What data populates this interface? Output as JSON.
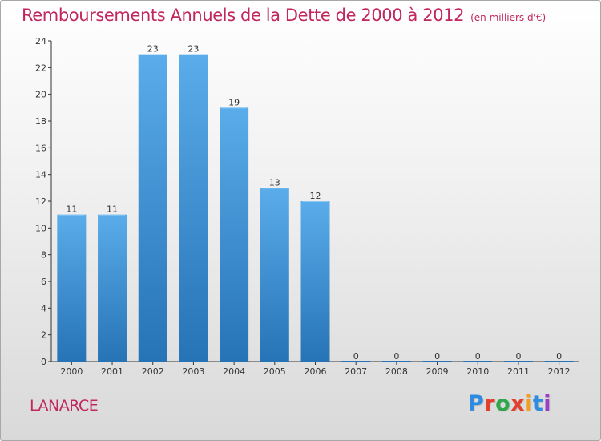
{
  "chart_data": {
    "type": "bar",
    "title": "Remboursements Annuels de la Dette de 2000 à 2012",
    "subtitle": "(en milliers d'€)",
    "categories": [
      "2000",
      "2001",
      "2002",
      "2003",
      "2004",
      "2005",
      "2006",
      "2007",
      "2008",
      "2009",
      "2010",
      "2011",
      "2012"
    ],
    "values": [
      11,
      11,
      23,
      23,
      19,
      13,
      12,
      0,
      0,
      0,
      0,
      0,
      0
    ],
    "ylim": [
      0,
      24
    ],
    "yticks": [
      0,
      2,
      4,
      6,
      8,
      10,
      12,
      14,
      16,
      18,
      20,
      22,
      24
    ],
    "grid": false,
    "legend": "none",
    "xlabel": "",
    "ylabel": "",
    "colors": {
      "bar_top": "#5aacea",
      "bar_bottom": "#2673b6",
      "title": "#c2265e",
      "axis": "#333333"
    }
  },
  "footer": {
    "commune": "LANARCE",
    "brand": "Proxiti",
    "brand_colors": [
      "#2e8be0",
      "#e0402c",
      "#2ea84a",
      "#e0402c",
      "#f0a020",
      "#2e8be0",
      "#9b3dc8"
    ]
  }
}
